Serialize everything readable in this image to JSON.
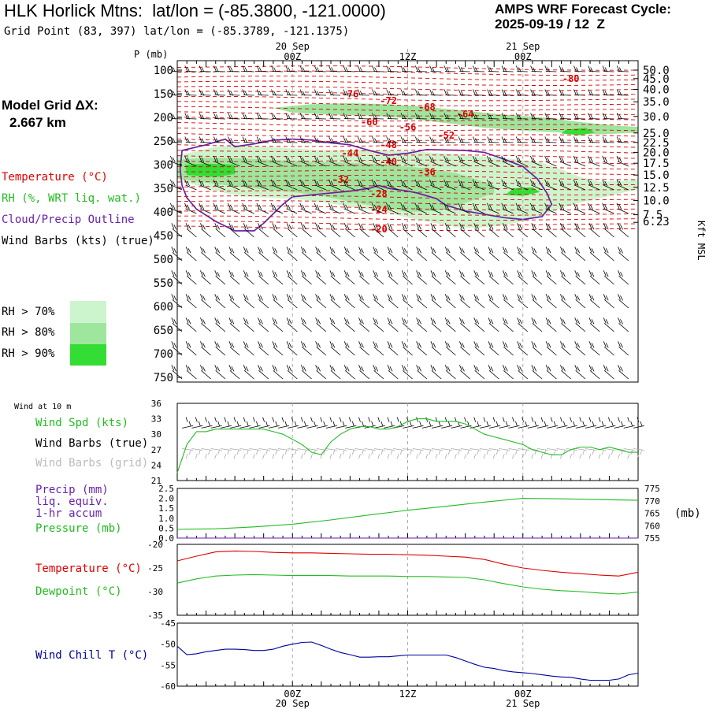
{
  "header": {
    "site_title": "HLK Horlick Mtns:  lat/lon = (-85.3800, -121.0000)",
    "grid_point": "Grid Point (83, 397) lat/lon = (-85.3789, -121.1375)",
    "cycle_line1": "AMPS WRF Forecast Cycle:",
    "cycle_line2": "2025-09-19 / 12  Z",
    "grid_label": "Model Grid ΔX:",
    "grid_value": "2.667 km"
  },
  "colors": {
    "temperature": "#dd0000",
    "rh": "#22bb22",
    "cloud": "#6622aa",
    "wind": "#000000",
    "wind_grid": "#aaaaaa",
    "wind_chill": "#000099",
    "rh70": "#cdf5cd",
    "rh80": "#9ee59e",
    "rh90": "#33dd33",
    "dashed_grid": "#aaaaaa"
  },
  "legend": {
    "temperature": "Temperature (°C)",
    "rh": "RH (%, WRT liq. wat.)",
    "cloud": "Cloud/Precip Outline",
    "wind": "Wind Barbs (kts) (true)",
    "rh_bins": [
      "RH > 70%",
      "RH > 80%",
      "RH > 90%"
    ]
  },
  "time_axis": {
    "top_dates": [
      "20 Sep",
      "21 Sep"
    ],
    "top_hours": [
      "00Z",
      "12Z",
      "00Z"
    ],
    "bottom_hours": [
      "00Z",
      "12Z",
      "00Z"
    ],
    "bottom_dates": [
      "20 Sep",
      "21 Sep"
    ]
  },
  "chart_data": [
    {
      "type": "heatmap",
      "name": "time-height cross section",
      "y_title": "P (mb)",
      "right_axis_label": "Kft MSL",
      "x_hours": [
        0,
        48
      ],
      "pressure_ticks": [
        "100",
        "150",
        "200",
        "250",
        "300",
        "350",
        "400",
        "450",
        "500",
        "550",
        "600",
        "650",
        "700",
        "750"
      ],
      "height_ticks": [
        {
          "label": "50.0",
          "p": 100
        },
        {
          "label": "45.0",
          "p": 118
        },
        {
          "label": "40.0",
          "p": 141
        },
        {
          "label": "35.0",
          "p": 167
        },
        {
          "label": "30.0",
          "p": 198
        },
        {
          "label": "25.0",
          "p": 233
        },
        {
          "label": "22.5",
          "p": 253
        },
        {
          "label": "20.0",
          "p": 274
        },
        {
          "label": "17.5",
          "p": 297
        },
        {
          "label": "15.0",
          "p": 322
        },
        {
          "label": "12.5",
          "p": 348
        },
        {
          "label": "10.0",
          "p": 376
        },
        {
          "label": "7.5",
          "p": 406
        },
        {
          "label": "6.23",
          "p": 422
        }
      ],
      "temperature_labels": [
        {
          "text": "-80",
          "t": 41,
          "p": 118
        },
        {
          "text": "-76",
          "t": 18,
          "p": 151
        },
        {
          "text": "-72",
          "t": 22,
          "p": 165
        },
        {
          "text": "-68",
          "t": 26,
          "p": 178
        },
        {
          "text": "-64",
          "t": 30,
          "p": 193
        },
        {
          "text": "-60",
          "t": 20,
          "p": 210
        },
        {
          "text": "-56",
          "t": 24,
          "p": 221
        },
        {
          "text": "-52",
          "t": 28,
          "p": 238
        },
        {
          "text": "-48",
          "t": 22,
          "p": 258
        },
        {
          "text": "-44",
          "t": 18,
          "p": 276
        },
        {
          "text": "-40",
          "t": 22,
          "p": 294
        },
        {
          "text": "-36",
          "t": 26,
          "p": 316
        },
        {
          "text": "-32",
          "t": 17,
          "p": 332
        },
        {
          "text": "-28",
          "t": 21,
          "p": 362
        },
        {
          "text": "-24",
          "t": 21,
          "p": 395
        },
        {
          "text": "-20",
          "t": 21,
          "p": 437
        }
      ]
    },
    {
      "type": "line",
      "name": "wind at 10 m",
      "panel_label": "Wind at 10 m",
      "labels": [
        "Wind Spd (kts)",
        "Wind Barbs (true)",
        "Wind Barbs (grid)"
      ],
      "y_ticks": [
        "36",
        "33",
        "30",
        "27",
        "24",
        "21"
      ],
      "ylim": [
        21,
        36
      ],
      "series": [
        {
          "name": "Wind Spd (kts)",
          "x": [
            0,
            1,
            2,
            3,
            4,
            5,
            6,
            7,
            8,
            9,
            10,
            11,
            12,
            13,
            14,
            15,
            16,
            17,
            18,
            19,
            20,
            21,
            22,
            23,
            24,
            25,
            26,
            27,
            28,
            29,
            30,
            31,
            32,
            33,
            34,
            35,
            36,
            37,
            38,
            39,
            40,
            41,
            42,
            43,
            44,
            45,
            46,
            47,
            48
          ],
          "y": [
            22.5,
            28,
            30.5,
            30.5,
            31,
            31,
            31,
            31,
            31,
            31,
            30.5,
            30,
            29,
            28,
            26.5,
            26,
            28.5,
            30,
            31,
            31.5,
            31.5,
            31,
            31,
            31.5,
            32.5,
            33,
            33,
            32.5,
            32.5,
            32.5,
            32,
            31,
            30,
            29.5,
            29,
            28.5,
            28,
            27,
            26.5,
            26,
            26,
            27,
            27.5,
            27.5,
            27,
            27.5,
            27,
            26.5,
            26.5
          ]
        }
      ]
    },
    {
      "type": "line",
      "name": "precipitation and pressure",
      "labels": [
        "Precip (mm)",
        "liq. equiv.",
        "1-hr accum",
        "Pressure (mb)"
      ],
      "right_unit": "(mb)",
      "y_ticks": [
        "2.5",
        "2.0",
        "1.5",
        "1.0",
        "0.5",
        "0.0"
      ],
      "right_ticks": [
        "775",
        "770",
        "765",
        "760",
        "755"
      ],
      "ylim": [
        0,
        2.5
      ],
      "y2lim": [
        755,
        775
      ],
      "series": [
        {
          "name": "Pressure (mb)",
          "x": [
            0,
            4,
            8,
            12,
            16,
            20,
            24,
            28,
            32,
            36,
            40,
            44,
            48
          ],
          "y": [
            758.5,
            758.7,
            759.5,
            760.6,
            762.3,
            764.3,
            766.2,
            767.8,
            769.5,
            771.0,
            770.8,
            770.5,
            770.2
          ]
        },
        {
          "name": "Precip (mm)",
          "x": [
            0,
            48
          ],
          "y": [
            0,
            0
          ]
        }
      ]
    },
    {
      "type": "line",
      "name": "temperature and dewpoint",
      "labels": [
        "Temperature (°C)",
        "Dewpoint (°C)"
      ],
      "y_ticks": [
        "-20",
        "-25",
        "-30",
        "-35"
      ],
      "ylim": [
        -35,
        -20
      ],
      "series": [
        {
          "name": "Temperature (°C)",
          "x": [
            0,
            2,
            4,
            6,
            8,
            10,
            12,
            14,
            16,
            18,
            20,
            22,
            24,
            26,
            28,
            30,
            32,
            34,
            36,
            38,
            40,
            42,
            44,
            46,
            48
          ],
          "y": [
            -23.5,
            -22.5,
            -21.6,
            -21.4,
            -21.5,
            -21.7,
            -21.8,
            -21.8,
            -21.9,
            -22.0,
            -22.1,
            -22.1,
            -22.2,
            -22.3,
            -22.5,
            -22.7,
            -23.2,
            -24.2,
            -25.0,
            -25.5,
            -25.9,
            -26.2,
            -26.5,
            -26.7,
            -25.9
          ]
        },
        {
          "name": "Dewpoint (°C)",
          "x": [
            0,
            2,
            4,
            6,
            8,
            10,
            12,
            14,
            16,
            18,
            20,
            22,
            24,
            26,
            28,
            30,
            32,
            34,
            36,
            38,
            40,
            42,
            44,
            46,
            48
          ],
          "y": [
            -28.2,
            -27.3,
            -26.7,
            -26.5,
            -26.4,
            -26.5,
            -26.6,
            -26.6,
            -26.6,
            -26.7,
            -26.7,
            -26.7,
            -26.8,
            -26.8,
            -26.9,
            -27.0,
            -27.5,
            -28.3,
            -29.0,
            -29.5,
            -29.8,
            -30.0,
            -30.3,
            -30.5,
            -30.1
          ]
        }
      ]
    },
    {
      "type": "line",
      "name": "wind chill",
      "labels": [
        "Wind Chill T (°C)"
      ],
      "y_ticks": [
        "-45",
        "-50",
        "-55",
        "-60"
      ],
      "ylim": [
        -60,
        -45
      ],
      "series": [
        {
          "name": "Wind Chill T (°C)",
          "x": [
            0,
            1,
            2,
            3,
            4,
            5,
            6,
            7,
            8,
            9,
            10,
            11,
            12,
            13,
            14,
            15,
            16,
            17,
            18,
            19,
            20,
            21,
            22,
            23,
            24,
            25,
            26,
            27,
            28,
            29,
            30,
            31,
            32,
            33,
            34,
            35,
            36,
            37,
            38,
            39,
            40,
            41,
            42,
            43,
            44,
            45,
            46,
            47,
            48
          ],
          "y": [
            -50.5,
            -52.5,
            -52.3,
            -51.8,
            -51.5,
            -51.2,
            -51.2,
            -51.3,
            -51.5,
            -51.5,
            -51.2,
            -50.5,
            -50.0,
            -49.6,
            -49.5,
            -50.3,
            -51.2,
            -52.0,
            -52.5,
            -53.1,
            -53.1,
            -53.0,
            -53.0,
            -52.8,
            -52.6,
            -52.6,
            -52.6,
            -52.6,
            -52.6,
            -53.2,
            -54.0,
            -54.8,
            -55.5,
            -55.8,
            -56.3,
            -56.6,
            -56.8,
            -57.0,
            -57.3,
            -57.6,
            -57.8,
            -57.9,
            -58.3,
            -58.6,
            -58.6,
            -58.6,
            -58.3,
            -57.3,
            -56.9
          ]
        }
      ]
    }
  ]
}
